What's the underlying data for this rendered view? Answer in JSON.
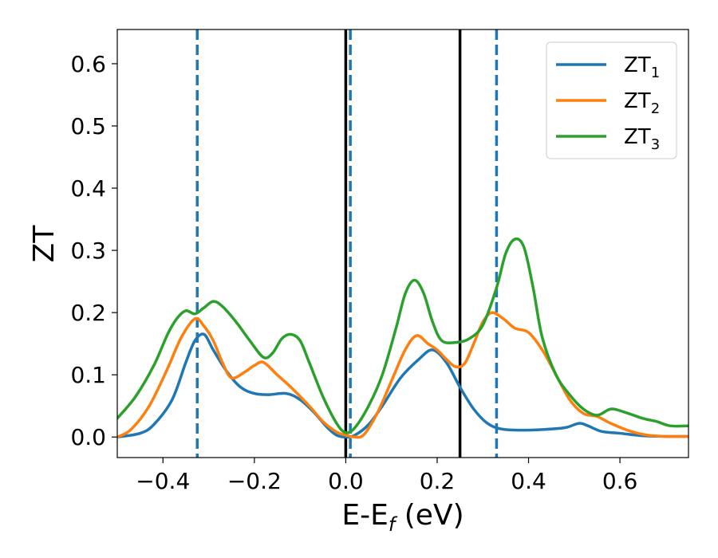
{
  "chart_data": {
    "type": "line",
    "xlabel": "E-E",
    "xlabel_sub": "f",
    "xlabel_unit": " (eV)",
    "ylabel": "ZT",
    "xlim": [
      -0.5,
      0.75
    ],
    "ylim": [
      -0.033,
      0.655
    ],
    "xticks": [
      -0.4,
      -0.2,
      0.0,
      0.2,
      0.4,
      0.6
    ],
    "xtick_labels": [
      "−0.4",
      "−0.2",
      "0.0",
      "0.2",
      "0.4",
      "0.6"
    ],
    "yticks": [
      0.0,
      0.1,
      0.2,
      0.3,
      0.4,
      0.5,
      0.6
    ],
    "ytick_labels": [
      "0.0",
      "0.1",
      "0.2",
      "0.3",
      "0.4",
      "0.5",
      "0.6"
    ],
    "grid": false,
    "legend_position": "top-right",
    "vertical_lines": [
      {
        "x": -0.325,
        "style": "dashed",
        "color": "#1f77b4"
      },
      {
        "x": 0.0,
        "style": "solid",
        "color": "#000000"
      },
      {
        "x": 0.01,
        "style": "dashed",
        "color": "#1f77b4"
      },
      {
        "x": 0.25,
        "style": "solid",
        "color": "#000000"
      },
      {
        "x": 0.33,
        "style": "dashed",
        "color": "#1f77b4"
      }
    ],
    "series": [
      {
        "name": "ZT",
        "name_sub": "1",
        "color": "#1f77b4",
        "points": [
          [
            -0.5,
            0.0
          ],
          [
            -0.45,
            0.006
          ],
          [
            -0.42,
            0.02
          ],
          [
            -0.38,
            0.06
          ],
          [
            -0.35,
            0.12
          ],
          [
            -0.33,
            0.155
          ],
          [
            -0.31,
            0.165
          ],
          [
            -0.29,
            0.14
          ],
          [
            -0.26,
            0.105
          ],
          [
            -0.23,
            0.08
          ],
          [
            -0.2,
            0.07
          ],
          [
            -0.17,
            0.068
          ],
          [
            -0.13,
            0.07
          ],
          [
            -0.1,
            0.06
          ],
          [
            -0.07,
            0.04
          ],
          [
            -0.04,
            0.015
          ],
          [
            -0.02,
            0.003
          ],
          [
            0.0,
            0.0
          ],
          [
            0.02,
            0.003
          ],
          [
            0.05,
            0.02
          ],
          [
            0.08,
            0.05
          ],
          [
            0.12,
            0.095
          ],
          [
            0.16,
            0.125
          ],
          [
            0.19,
            0.14
          ],
          [
            0.22,
            0.12
          ],
          [
            0.25,
            0.08
          ],
          [
            0.28,
            0.045
          ],
          [
            0.31,
            0.022
          ],
          [
            0.34,
            0.013
          ],
          [
            0.38,
            0.011
          ],
          [
            0.43,
            0.012
          ],
          [
            0.48,
            0.015
          ],
          [
            0.51,
            0.022
          ],
          [
            0.53,
            0.018
          ],
          [
            0.56,
            0.009
          ],
          [
            0.6,
            0.006
          ],
          [
            0.65,
            0.002
          ],
          [
            0.7,
            0.001
          ],
          [
            0.75,
            0.001
          ]
        ]
      },
      {
        "name": "ZT",
        "name_sub": "2",
        "color": "#ff7f0e",
        "points": [
          [
            -0.5,
            0.0
          ],
          [
            -0.47,
            0.012
          ],
          [
            -0.43,
            0.05
          ],
          [
            -0.39,
            0.11
          ],
          [
            -0.36,
            0.16
          ],
          [
            -0.33,
            0.19
          ],
          [
            -0.31,
            0.178
          ],
          [
            -0.29,
            0.155
          ],
          [
            -0.27,
            0.12
          ],
          [
            -0.25,
            0.095
          ],
          [
            -0.22,
            0.105
          ],
          [
            -0.2,
            0.115
          ],
          [
            -0.18,
            0.12
          ],
          [
            -0.15,
            0.1
          ],
          [
            -0.12,
            0.08
          ],
          [
            -0.08,
            0.05
          ],
          [
            -0.05,
            0.025
          ],
          [
            -0.02,
            0.008
          ],
          [
            0.0,
            0.003
          ],
          [
            0.02,
            0.0
          ],
          [
            0.04,
            0.004
          ],
          [
            0.07,
            0.04
          ],
          [
            0.1,
            0.09
          ],
          [
            0.13,
            0.14
          ],
          [
            0.155,
            0.163
          ],
          [
            0.18,
            0.15
          ],
          [
            0.2,
            0.14
          ],
          [
            0.22,
            0.125
          ],
          [
            0.24,
            0.113
          ],
          [
            0.26,
            0.118
          ],
          [
            0.28,
            0.15
          ],
          [
            0.3,
            0.185
          ],
          [
            0.32,
            0.2
          ],
          [
            0.345,
            0.19
          ],
          [
            0.37,
            0.175
          ],
          [
            0.4,
            0.168
          ],
          [
            0.43,
            0.14
          ],
          [
            0.46,
            0.1
          ],
          [
            0.49,
            0.06
          ],
          [
            0.52,
            0.038
          ],
          [
            0.55,
            0.033
          ],
          [
            0.58,
            0.022
          ],
          [
            0.62,
            0.01
          ],
          [
            0.66,
            0.003
          ],
          [
            0.7,
            0.001
          ],
          [
            0.75,
            0.001
          ]
        ]
      },
      {
        "name": "ZT",
        "name_sub": "3",
        "color": "#2ca02c",
        "points": [
          [
            -0.5,
            0.03
          ],
          [
            -0.46,
            0.065
          ],
          [
            -0.42,
            0.115
          ],
          [
            -0.39,
            0.165
          ],
          [
            -0.37,
            0.19
          ],
          [
            -0.35,
            0.203
          ],
          [
            -0.33,
            0.198
          ],
          [
            -0.31,
            0.208
          ],
          [
            -0.29,
            0.218
          ],
          [
            -0.27,
            0.21
          ],
          [
            -0.24,
            0.185
          ],
          [
            -0.21,
            0.155
          ],
          [
            -0.18,
            0.128
          ],
          [
            -0.16,
            0.135
          ],
          [
            -0.14,
            0.158
          ],
          [
            -0.12,
            0.165
          ],
          [
            -0.1,
            0.155
          ],
          [
            -0.08,
            0.12
          ],
          [
            -0.05,
            0.065
          ],
          [
            -0.02,
            0.022
          ],
          [
            0.0,
            0.007
          ],
          [
            0.02,
            0.015
          ],
          [
            0.05,
            0.05
          ],
          [
            0.08,
            0.1
          ],
          [
            0.11,
            0.175
          ],
          [
            0.13,
            0.23
          ],
          [
            0.15,
            0.252
          ],
          [
            0.17,
            0.232
          ],
          [
            0.19,
            0.185
          ],
          [
            0.21,
            0.155
          ],
          [
            0.24,
            0.152
          ],
          [
            0.27,
            0.158
          ],
          [
            0.3,
            0.18
          ],
          [
            0.33,
            0.24
          ],
          [
            0.35,
            0.295
          ],
          [
            0.37,
            0.318
          ],
          [
            0.39,
            0.305
          ],
          [
            0.41,
            0.24
          ],
          [
            0.43,
            0.16
          ],
          [
            0.46,
            0.1
          ],
          [
            0.49,
            0.068
          ],
          [
            0.52,
            0.045
          ],
          [
            0.55,
            0.035
          ],
          [
            0.58,
            0.045
          ],
          [
            0.61,
            0.04
          ],
          [
            0.65,
            0.03
          ],
          [
            0.68,
            0.025
          ],
          [
            0.71,
            0.018
          ],
          [
            0.75,
            0.018
          ]
        ]
      }
    ]
  }
}
